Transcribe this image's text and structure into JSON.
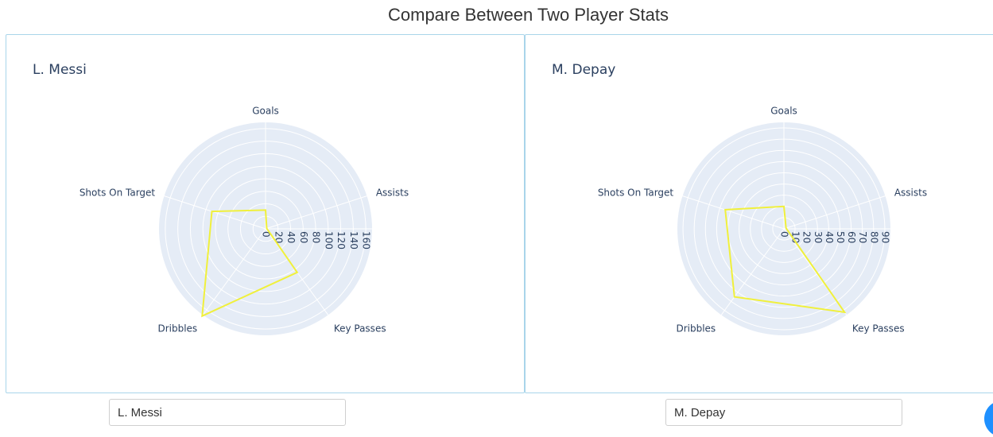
{
  "page_title": "Compare Between Two Player Stats",
  "colors": {
    "trace": "#f0f03c",
    "polar_bg": "#e5ecf6",
    "grid": "#ffffff",
    "text": "#2a3f5f",
    "panel_border": "#a9d5ea",
    "accent": "#1e90ff"
  },
  "inputs": [
    {
      "value": "L. Messi"
    },
    {
      "value": "M. Depay"
    }
  ],
  "chart_data": [
    {
      "type": "radar",
      "title": "L. Messi",
      "axes": [
        "Goals",
        "Assists",
        "Key Passes",
        "Dribbles",
        "Shots On Target"
      ],
      "values": [
        30,
        2,
        86,
        172,
        90
      ],
      "rlim": [
        0,
        170
      ],
      "ticks": [
        0,
        20,
        40,
        60,
        80,
        100,
        120,
        140,
        160
      ],
      "grid": true,
      "legend": "none"
    },
    {
      "type": "radar",
      "title": "M. Depay",
      "axes": [
        "Goals",
        "Assists",
        "Key Passes",
        "Dribbles",
        "Shots On Target"
      ],
      "values": [
        20,
        2,
        92,
        75,
        55
      ],
      "rlim": [
        0,
        95
      ],
      "ticks": [
        0,
        10,
        20,
        30,
        40,
        50,
        60,
        70,
        80,
        90
      ],
      "grid": true,
      "legend": "none"
    }
  ]
}
